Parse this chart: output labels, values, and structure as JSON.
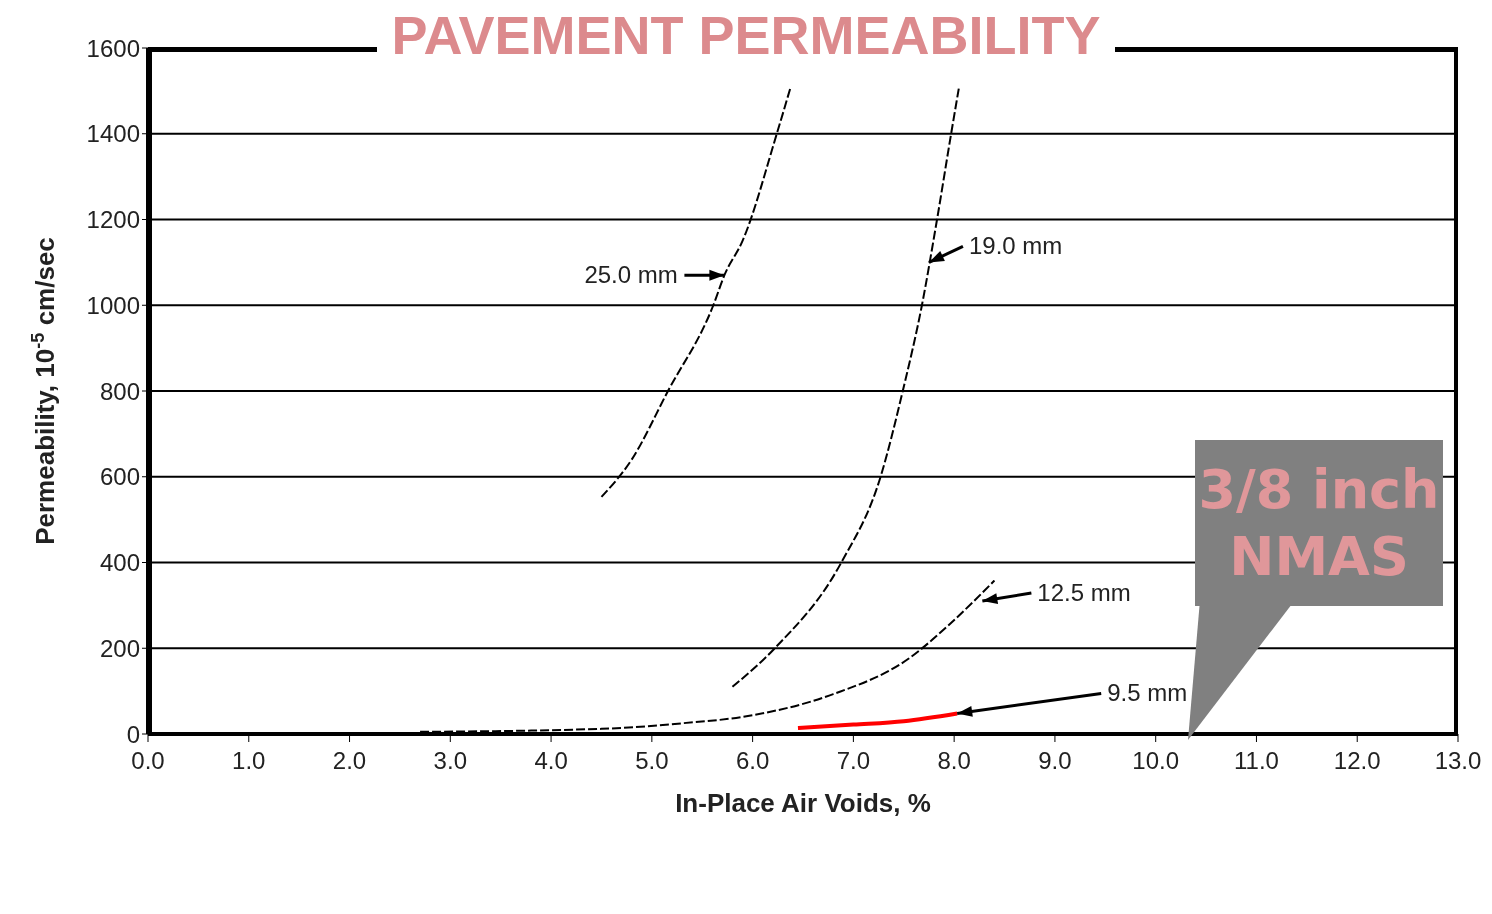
{
  "chart_data": {
    "type": "line",
    "title": "PAVEMENT PERMEABILITY",
    "xlabel": "In-Place Air Voids, %",
    "ylabel": "Permeability, 10$^{-5}$ cm/sec",
    "xlim": [
      0,
      13
    ],
    "xticks": [
      {
        "value": 0,
        "label": "0.0"
      },
      {
        "value": 1,
        "label": "1.0"
      },
      {
        "value": 2,
        "label": "2.0"
      },
      {
        "value": 3,
        "label": "3.0"
      },
      {
        "value": 4,
        "label": "4.0"
      },
      {
        "value": 5,
        "label": "5.0"
      },
      {
        "value": 6,
        "label": "6.0"
      },
      {
        "value": 7,
        "label": "7.0"
      },
      {
        "value": 8,
        "label": "8.0"
      },
      {
        "value": 9,
        "label": "9.0"
      },
      {
        "value": 10,
        "label": "10.0"
      },
      {
        "value": 11,
        "label": "11.0"
      },
      {
        "value": 12,
        "label": "12.0"
      },
      {
        "value": 13,
        "label": "13.0"
      }
    ],
    "ylim": [
      0,
      1600
    ],
    "yticks": [
      0,
      200,
      400,
      600,
      800,
      1000,
      1200,
      1400,
      1600
    ],
    "grid": "y",
    "legend": false,
    "marker": "none",
    "series": [
      {
        "color": "#000000",
        "line_style": "dashed",
        "x": [
          4.5,
          4.8,
          5.16,
          5.61,
          5.72,
          5.9,
          6.24,
          6.38
        ],
        "values": [
          553,
          640,
          800,
          1000,
          1070,
          1150,
          1400,
          1511
        ]
      },
      {
        "color": "#000000",
        "line_style": "dashed",
        "x": [
          5.8,
          6.22,
          6.88,
          7.27,
          7.49,
          7.68,
          7.83,
          7.97,
          8.05
        ],
        "values": [
          110,
          200,
          400,
          600,
          800,
          1000,
          1200,
          1400,
          1511
        ]
      },
      {
        "color": "#000000",
        "line_style": "dashed",
        "x": [
          2.7,
          4.5,
          5.3,
          5.9,
          6.8,
          7.55,
          7.95,
          8.4
        ],
        "values": [
          5,
          12,
          25,
          40,
          93,
          176,
          255,
          358
        ]
      },
      {
        "color": "#ff0000",
        "line_style": "solid",
        "x": [
          6.45,
          7.0,
          7.5,
          8.03
        ],
        "values": [
          14,
          22,
          30,
          48
        ]
      }
    ],
    "annotations": [
      {
        "text": "25.0 mm",
        "x": 5.72,
        "y": 1070
      },
      {
        "text": "19.0 mm",
        "x": 7.75,
        "y": 1100
      },
      {
        "text": "12.5 mm",
        "x": 8.28,
        "y": 310
      },
      {
        "text": "9.5 mm",
        "x": 8.03,
        "y": 48
      },
      "3/8 inch NMAS"
    ]
  }
}
